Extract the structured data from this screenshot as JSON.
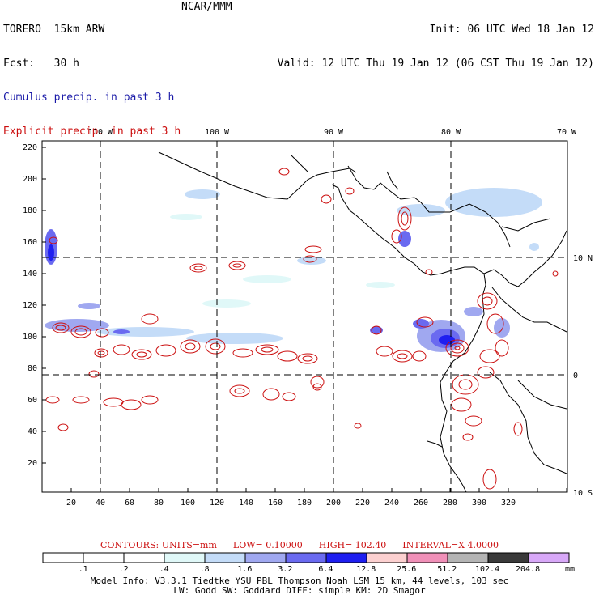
{
  "header": {
    "model": "TORERO  15km ARW",
    "org": "NCAR/MMM",
    "init": "Init: 06 UTC Wed 18 Jan 12",
    "fcst_label": "Fcst:",
    "fcst_value": "30 h",
    "valid": "Valid: 12 UTC Thu 19 Jan 12 (06 CST Thu 19 Jan 12)",
    "field1": "Cumulus precip. in past 3 h",
    "field2": "Explicit precip. in past 3 h",
    "field1_color": "#1a1aa8",
    "field2_color": "#cc1010"
  },
  "map": {
    "top_lon_labels": [
      "110 W",
      "100 W",
      "90 W",
      "80 W",
      "70 W"
    ],
    "right_lat_labels": [
      "10 N",
      "0",
      "10 S"
    ],
    "y_ticks": [
      "220",
      "200",
      "180",
      "160",
      "140",
      "120",
      "100",
      "80",
      "60",
      "40",
      "20"
    ],
    "x_ticks": [
      "20",
      "40",
      "60",
      "80",
      "100",
      "120",
      "140",
      "160",
      "180",
      "200",
      "220",
      "240",
      "260",
      "280",
      "300",
      "320"
    ]
  },
  "contours": {
    "units": "CONTOURS:  UNITS=mm",
    "low": "LOW= 0.10000",
    "high": "HIGH=  102.40",
    "interval": "INTERVAL=X  4.0000"
  },
  "colorbar": {
    "labels": [
      ".1",
      ".2",
      ".4",
      ".8",
      "1.6",
      "3.2",
      "6.4",
      "12.8",
      "25.6",
      "51.2",
      "102.4",
      "204.8"
    ],
    "unit": "mm",
    "colors": [
      "#ffffff",
      "#ffffff",
      "#ffffff",
      "#e0f8f8",
      "#c4dcf8",
      "#a0a8f0",
      "#6a6af0",
      "#1e1ef0",
      "#fcd0d0",
      "#f090b8",
      "#b4b4b4",
      "#3a3a3a",
      "#d8a8f8"
    ]
  },
  "footer": {
    "line1": "Model Info: V3.3.1    Tiedtke YSU PBL  Thompson     Noah LSM  15 km,   44 levels,  103 sec",
    "line2": "LW: Godd SW: Goddard DIFF: simple KM: 2D Smagor"
  }
}
